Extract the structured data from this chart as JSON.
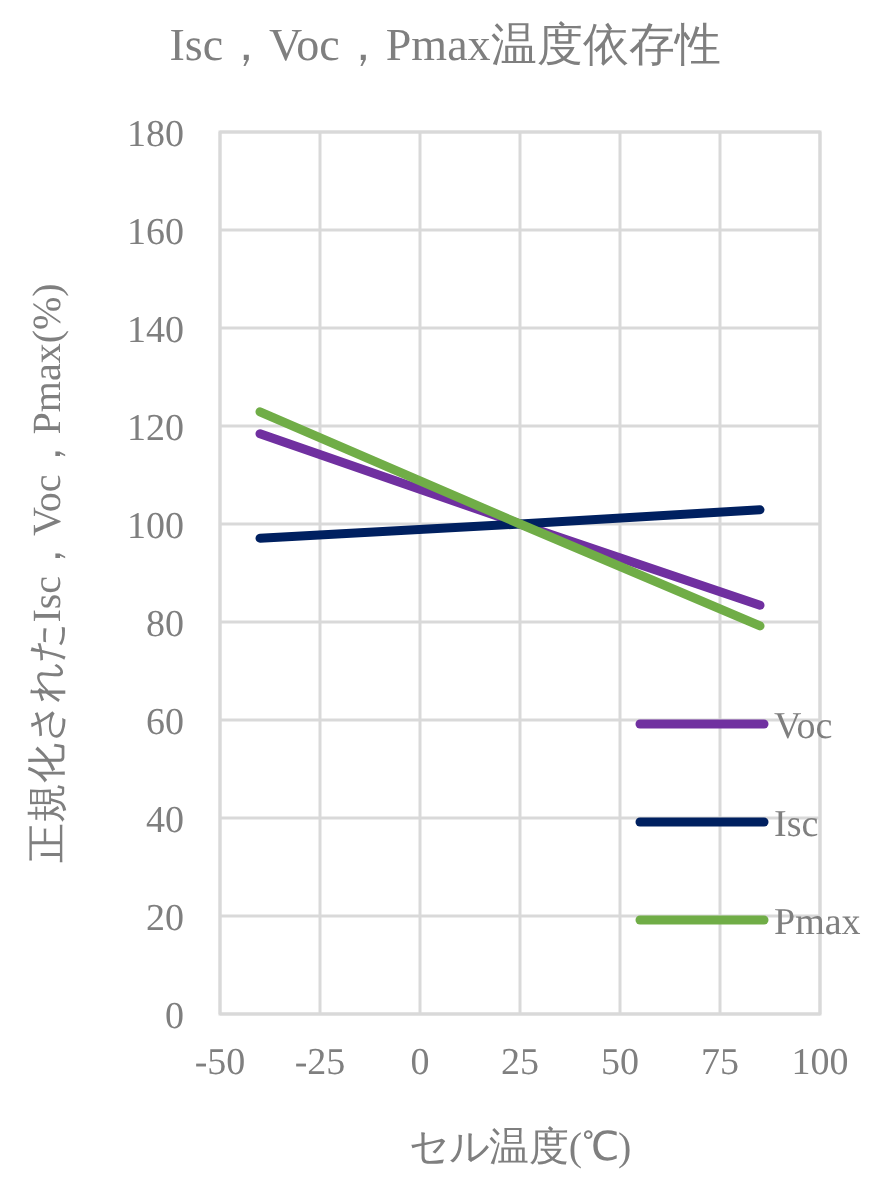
{
  "chart_data": {
    "type": "line",
    "title": "Isc，Voc，Pmax温度依存性",
    "xlabel": "セル温度(℃)",
    "ylabel": "正規化されたIsc，Voc，Pmax(%)",
    "xlim": [
      -50,
      100
    ],
    "xticks": [
      -50,
      -25,
      0,
      25,
      50,
      75,
      100
    ],
    "ylim": [
      0,
      180
    ],
    "yticks": [
      0,
      20,
      40,
      60,
      80,
      100,
      120,
      140,
      160,
      180
    ],
    "grid": true,
    "legend": "bottom right",
    "marker": "none",
    "line_style": "solid",
    "series": [
      {
        "name": "Voc",
        "color": "#7030a0",
        "x": [
          -40,
          25,
          85
        ],
        "values": [
          118.4,
          100,
          83.4
        ]
      },
      {
        "name": "Isc",
        "color": "#002060",
        "x": [
          -40,
          25,
          85
        ],
        "values": [
          97.1,
          100,
          102.9
        ]
      },
      {
        "name": "Pmax",
        "color": "#70ad47",
        "x": [
          -40,
          25,
          85
        ],
        "values": [
          122.9,
          100,
          79.2
        ]
      }
    ]
  }
}
